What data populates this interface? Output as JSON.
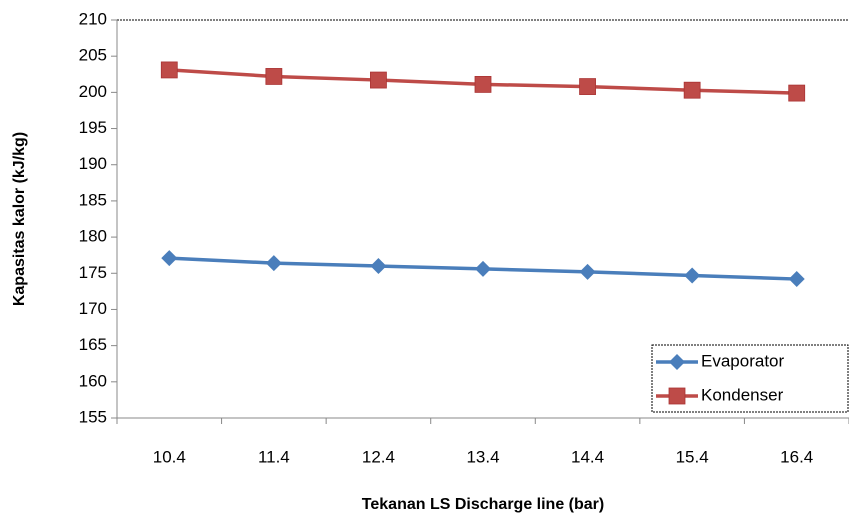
{
  "chart_data": {
    "type": "line",
    "x_label": "Tekanan LS Discharge line (bar)",
    "y_label": "Kapasitas kalor (kJ/kg)",
    "categories": [
      "10.4",
      "11.4",
      "12.4",
      "13.4",
      "14.4",
      "15.4",
      "16.4"
    ],
    "series": [
      {
        "name": "Evaporator",
        "color": "#4a7ebb",
        "marker": "diamond",
        "values": [
          177.1,
          176.4,
          176.0,
          175.6,
          175.2,
          174.7,
          174.2
        ]
      },
      {
        "name": "Kondenser",
        "color": "#be4b48",
        "marker": "square",
        "values": [
          203.1,
          202.2,
          201.7,
          201.1,
          200.8,
          200.3,
          199.9
        ]
      }
    ],
    "ylim": [
      155,
      210
    ],
    "yticks": [
      155,
      160,
      165,
      170,
      175,
      180,
      185,
      190,
      195,
      200,
      205,
      210
    ],
    "legend": "lower right"
  }
}
